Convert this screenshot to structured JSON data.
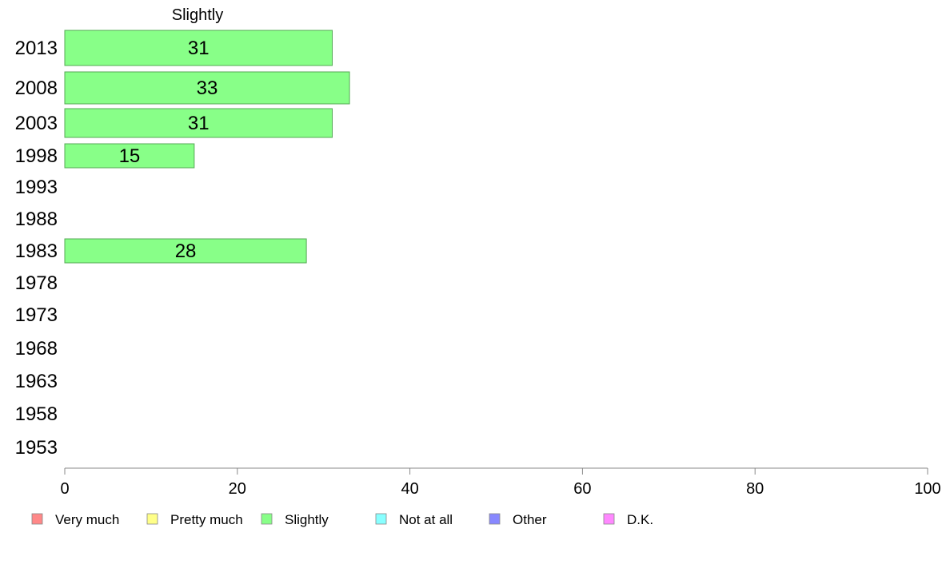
{
  "chart_data": {
    "type": "bar",
    "orientation": "horizontal",
    "title": "Slightly",
    "categories": [
      "2013",
      "2008",
      "2003",
      "1998",
      "1993",
      "1988",
      "1983",
      "1978",
      "1973",
      "1968",
      "1963",
      "1958",
      "1953"
    ],
    "series": [
      {
        "name": "Slightly",
        "color": "#88ff88",
        "values": [
          31,
          33,
          31,
          15,
          null,
          null,
          28,
          null,
          null,
          null,
          null,
          null,
          null
        ]
      }
    ],
    "xlim": [
      0,
      100
    ],
    "xticks": [
      0,
      20,
      40,
      60,
      80,
      100
    ],
    "grid": false,
    "legend": {
      "placement": "bottom",
      "entries": [
        {
          "label": "Very much",
          "color": "#ff8888"
        },
        {
          "label": "Pretty much",
          "color": "#ffff88"
        },
        {
          "label": "Slightly",
          "color": "#88ff88"
        },
        {
          "label": "Not at all",
          "color": "#88ffff"
        },
        {
          "label": "Other",
          "color": "#8888ff"
        },
        {
          "label": "D.K.",
          "color": "#ff88ff"
        }
      ]
    }
  }
}
